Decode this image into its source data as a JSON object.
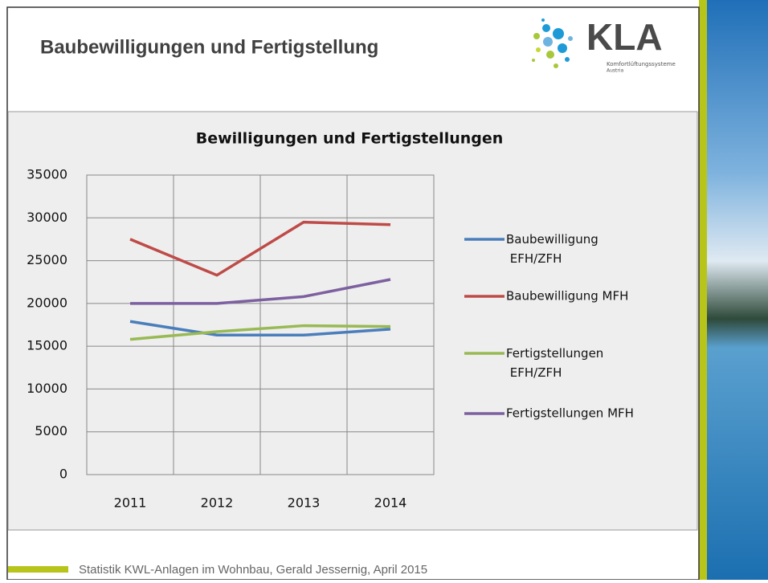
{
  "slide": {
    "title": "Baubewilligungen und Fertigstellung",
    "logo": {
      "text": "KLA",
      "tagline": "Komfortlüftungssysteme",
      "country": "Austria"
    },
    "footer": "Statistik KWL-Anlagen im Wohnbau, Gerald Jessernig, April 2015"
  },
  "chart_data": {
    "type": "line",
    "title": "Bewilligungen und Fertigstellungen",
    "categories": [
      "2011",
      "2012",
      "2013",
      "2014"
    ],
    "series": [
      {
        "name": "Baubewilligung EFH/ZFH",
        "color": "#4a7ebb",
        "values": [
          17900,
          16300,
          16300,
          17000
        ]
      },
      {
        "name": "Baubewilligung MFH",
        "color": "#be4b48",
        "values": [
          27500,
          23300,
          29500,
          29200
        ]
      },
      {
        "name": "Fertigstellungen EFH/ZFH",
        "color": "#98b954",
        "values": [
          15800,
          16700,
          17400,
          17300
        ]
      },
      {
        "name": "Fertigstellungen MFH",
        "color": "#7d60a0",
        "values": [
          20000,
          20000,
          20800,
          22800
        ]
      }
    ],
    "ylim": [
      0,
      35000
    ],
    "yticks": [
      0,
      5000,
      10000,
      15000,
      20000,
      25000,
      30000,
      35000
    ],
    "grid": true,
    "legend": "right"
  }
}
